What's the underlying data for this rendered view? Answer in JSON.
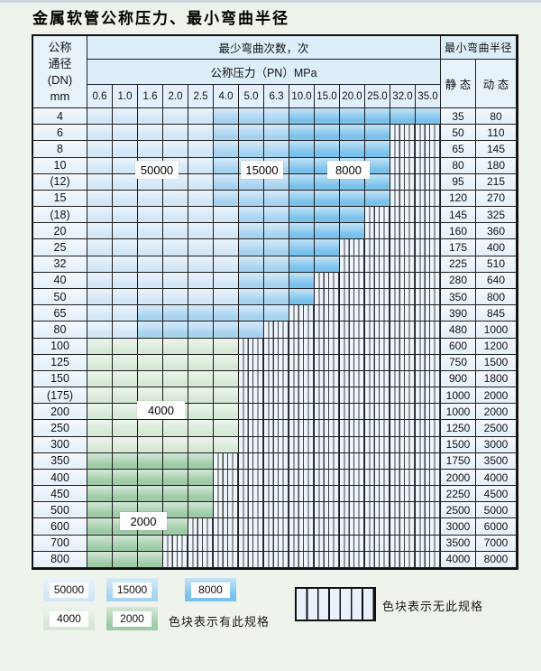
{
  "title": "金属软管公称压力、最小弯曲半径",
  "table": {
    "header": {
      "dn_lines": [
        "公称",
        "通径",
        "(DN)",
        "mm"
      ],
      "cycles_label": "最少弯曲次数，次",
      "pressure_label": "公称压力（PN）MPa",
      "pressures": [
        "0.6",
        "1.0",
        "1.6",
        "2.0",
        "2.5",
        "4.0",
        "5.0",
        "6.3",
        "10.0",
        "15.0",
        "20.0",
        "25.0",
        "32.0",
        "35.0"
      ],
      "radius_label": "最小弯曲半径",
      "static_label": "静 态",
      "dynamic_label": "动 态"
    },
    "zone_legend": {
      "A": "50000",
      "B": "15000",
      "C": "8000",
      "D": "4000",
      "E": "2000",
      "H": "无此规格"
    },
    "zone_colors": {
      "A": "#d3e7f7",
      "B": "#a7d3f1",
      "C": "#7ac1ec",
      "D": "#d7e9d6",
      "E": "#9ecba6"
    },
    "rows": [
      {
        "dn": "4",
        "cells": "AAAAABBBCCCCCC",
        "static": "35",
        "dynamic": "80"
      },
      {
        "dn": "6",
        "cells": "AAAAABBBCCCCHH",
        "static": "50",
        "dynamic": "110"
      },
      {
        "dn": "8",
        "cells": "AAAAABBBCCCCHH",
        "static": "65",
        "dynamic": "145"
      },
      {
        "dn": "10",
        "cells": "AAAAABBBCCCCHH",
        "static": "80",
        "dynamic": "180"
      },
      {
        "dn": "(12)",
        "cells": "AAAAABBBCCCCHH",
        "static": "95",
        "dynamic": "215"
      },
      {
        "dn": "15",
        "cells": "AAAAABBBCCCCHH",
        "static": "120",
        "dynamic": "270"
      },
      {
        "dn": "(18)",
        "cells": "AAAAAABBCCCHHH",
        "static": "145",
        "dynamic": "325"
      },
      {
        "dn": "20",
        "cells": "AAAAAABBCCCHHH",
        "static": "160",
        "dynamic": "360"
      },
      {
        "dn": "25",
        "cells": "AAAAAABBCCHHHH",
        "static": "175",
        "dynamic": "400"
      },
      {
        "dn": "32",
        "cells": "AAAAAABBCCHHHH",
        "static": "225",
        "dynamic": "510"
      },
      {
        "dn": "40",
        "cells": "AAAAAABBCHHHHH",
        "static": "280",
        "dynamic": "640"
      },
      {
        "dn": "50",
        "cells": "AAAAAABBCHHHHH",
        "static": "350",
        "dynamic": "800"
      },
      {
        "dn": "65",
        "cells": "AABBBBBBHHHHHH",
        "static": "390",
        "dynamic": "845"
      },
      {
        "dn": "80",
        "cells": "AABBBBBHHHHHHH",
        "static": "480",
        "dynamic": "1000"
      },
      {
        "dn": "100",
        "cells": "DDDDDDHHHHHHHH",
        "static": "600",
        "dynamic": "1200"
      },
      {
        "dn": "125",
        "cells": "DDDDDDHHHHHHHH",
        "static": "750",
        "dynamic": "1500"
      },
      {
        "dn": "150",
        "cells": "DDDDDDHHHHHHHH",
        "static": "900",
        "dynamic": "1800"
      },
      {
        "dn": "(175)",
        "cells": "DDDDDDHHHHHHHH",
        "static": "1000",
        "dynamic": "2000"
      },
      {
        "dn": "200",
        "cells": "DDDDDDHHHHHHHH",
        "static": "1000",
        "dynamic": "2000"
      },
      {
        "dn": "250",
        "cells": "DDDDDDHHHHHHHH",
        "static": "1250",
        "dynamic": "2500"
      },
      {
        "dn": "300",
        "cells": "DDDDDDHHHHHHHH",
        "static": "1500",
        "dynamic": "3000"
      },
      {
        "dn": "350",
        "cells": "EEEEEHHHHHHHHH",
        "static": "1750",
        "dynamic": "3500"
      },
      {
        "dn": "400",
        "cells": "EEEEEHHHHHHHHH",
        "static": "2000",
        "dynamic": "4000"
      },
      {
        "dn": "450",
        "cells": "EEEEEHHHHHHHHH",
        "static": "2250",
        "dynamic": "4500"
      },
      {
        "dn": "500",
        "cells": "EEEEEHHHHHHHHH",
        "static": "2500",
        "dynamic": "5000"
      },
      {
        "dn": "600",
        "cells": "EEEEHHHHHHHHHH",
        "static": "3000",
        "dynamic": "6000"
      },
      {
        "dn": "700",
        "cells": "EEEHHHHHHHHHHH",
        "static": "3500",
        "dynamic": "7000"
      },
      {
        "dn": "800",
        "cells": "EEEHHHHHHHHHHH",
        "static": "4000",
        "dynamic": "8000"
      }
    ],
    "overlay_labels": [
      "50000",
      "15000",
      "8000",
      "4000",
      "2000"
    ]
  },
  "legend": {
    "swatches": [
      {
        "label": "50000",
        "zone": "A"
      },
      {
        "label": "15000",
        "zone": "B"
      },
      {
        "label": "8000",
        "zone": "C"
      },
      {
        "label": "4000",
        "zone": "D"
      },
      {
        "label": "2000",
        "zone": "E"
      }
    ],
    "has_spec_note": "色块表示有此规格",
    "no_spec_note": "色块表示无此规格"
  }
}
